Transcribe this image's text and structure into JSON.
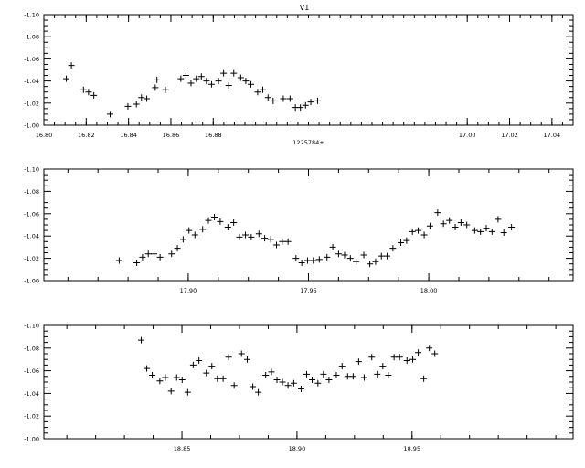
{
  "figure": {
    "title": "V1"
  },
  "chart_data": [
    {
      "type": "scatter",
      "xlabel": "1225784+",
      "ylabel": "",
      "xlim": [
        16.8,
        17.05
      ],
      "ylim": [
        -1.0,
        -1.1
      ],
      "y_axis": "inverted",
      "grid": false,
      "legend": "none",
      "x_ticks": [
        16.8,
        16.82,
        16.84,
        16.86,
        16.88,
        17.0,
        17.02,
        17.04
      ],
      "x_tick_labels": [
        "16.80",
        "16.82",
        "16.84",
        "16.86",
        "16.88",
        "17.00",
        "17.02",
        "17.04"
      ],
      "y_ticks": [
        -1.0,
        -1.02,
        -1.04,
        -1.06,
        -1.08,
        -1.1
      ],
      "y_tick_labels": [
        "-1.00",
        "-1.02",
        "-1.04",
        "-1.06",
        "-1.08",
        "-1.10"
      ],
      "x": [
        16.8106,
        16.813,
        16.8187,
        16.8211,
        16.8236,
        16.8313,
        16.8397,
        16.8437,
        16.8461,
        16.8486,
        16.8526,
        16.8534,
        16.8574,
        16.8647,
        16.8671,
        16.8695,
        16.872,
        16.8744,
        16.8768,
        16.8792,
        16.8825,
        16.8849,
        16.8873,
        16.8897,
        16.893,
        16.8954,
        16.8978,
        16.901,
        16.9034,
        16.9059,
        16.9083,
        16.9131,
        16.9163,
        16.9188,
        16.9212,
        16.9236,
        16.9261,
        16.9293
      ],
      "y": [
        -1.042,
        -1.054,
        -1.032,
        -1.03,
        -1.027,
        -1.01,
        -1.017,
        -1.019,
        -1.025,
        -1.024,
        -1.034,
        -1.041,
        -1.032,
        -1.042,
        -1.045,
        -1.038,
        -1.042,
        -1.044,
        -1.04,
        -1.037,
        -1.04,
        -1.047,
        -1.036,
        -1.047,
        -1.043,
        -1.04,
        -1.037,
        -1.03,
        -1.032,
        -1.025,
        -1.022,
        -1.024,
        -1.024,
        -1.016,
        -1.016,
        -1.018,
        -1.021,
        -1.022
      ]
    },
    {
      "type": "scatter",
      "xlabel": "",
      "ylabel": "",
      "xlim": [
        17.84,
        18.06
      ],
      "ylim": [
        -1.0,
        -1.1
      ],
      "y_axis": "inverted",
      "grid": false,
      "legend": "none",
      "x_ticks": [
        17.9,
        17.95,
        18.0
      ],
      "x_tick_labels": [
        "17.90",
        "17.95",
        "18.00"
      ],
      "y_ticks": [
        -1.0,
        -1.02,
        -1.04,
        -1.06,
        -1.08,
        -1.1
      ],
      "y_tick_labels": [
        "-1.00",
        "-1.02",
        "-1.04",
        "-1.06",
        "-1.08",
        "-1.10"
      ],
      "x": [
        17.8713,
        17.8786,
        17.881,
        17.8834,
        17.8858,
        17.8883,
        17.8931,
        17.8955,
        17.8979,
        17.9003,
        17.9028,
        17.906,
        17.9084,
        17.9109,
        17.9133,
        17.9165,
        17.9189,
        17.9213,
        17.9238,
        17.9262,
        17.9294,
        17.9318,
        17.9343,
        17.9367,
        17.9391,
        17.9415,
        17.9448,
        17.9472,
        17.9496,
        17.952,
        17.9545,
        17.9577,
        17.9601,
        17.9625,
        17.965,
        17.9674,
        17.9698,
        17.973,
        17.9755,
        17.9779,
        17.9803,
        17.9827,
        17.9851,
        17.9884,
        17.9908,
        17.9932,
        17.9956,
        17.9981,
        18.0005,
        18.0037,
        18.0061,
        18.0086,
        18.011,
        18.0134,
        18.0158,
        18.0191,
        18.0215,
        18.0239,
        18.0263,
        18.0288,
        18.0312,
        18.0344
      ],
      "y": [
        -1.018,
        -1.016,
        -1.021,
        -1.024,
        -1.024,
        -1.021,
        -1.024,
        -1.029,
        -1.037,
        -1.045,
        -1.041,
        -1.046,
        -1.054,
        -1.057,
        -1.053,
        -1.048,
        -1.052,
        -1.039,
        -1.041,
        -1.039,
        -1.042,
        -1.038,
        -1.037,
        -1.032,
        -1.035,
        -1.035,
        -1.02,
        -1.016,
        -1.018,
        -1.018,
        -1.019,
        -1.021,
        -1.03,
        -1.024,
        -1.023,
        -1.02,
        -1.017,
        -1.023,
        -1.015,
        -1.017,
        -1.022,
        -1.022,
        -1.029,
        -1.034,
        -1.036,
        -1.044,
        -1.045,
        -1.041,
        -1.049,
        -1.061,
        -1.051,
        -1.054,
        -1.048,
        -1.052,
        -1.05,
        -1.045,
        -1.044,
        -1.047,
        -1.044,
        -1.055,
        -1.043,
        -1.048
      ]
    },
    {
      "type": "scatter",
      "xlabel": "",
      "ylabel": "",
      "xlim": [
        18.79,
        19.02
      ],
      "ylim": [
        -1.0,
        -1.1
      ],
      "y_axis": "inverted",
      "grid": false,
      "legend": "none",
      "x_ticks": [
        18.85,
        18.9,
        18.95
      ],
      "x_tick_labels": [
        "18.85",
        "18.90",
        "18.95"
      ],
      "y_ticks": [
        -1.0,
        -1.02,
        -1.04,
        -1.06,
        -1.08,
        -1.1
      ],
      "y_tick_labels": [
        "-1.00",
        "-1.02",
        "-1.04",
        "-1.06",
        "-1.08",
        "-1.10"
      ],
      "x": [
        18.8323,
        18.8347,
        18.8371,
        18.8404,
        18.8428,
        18.8453,
        18.8477,
        18.8501,
        18.8525,
        18.8549,
        18.8574,
        18.8606,
        18.863,
        18.8654,
        18.8679,
        18.8703,
        18.8727,
        18.8759,
        18.8784,
        18.8808,
        18.8832,
        18.8864,
        18.8889,
        18.8913,
        18.8937,
        18.8961,
        18.8986,
        18.9018,
        18.9042,
        18.9066,
        18.9091,
        18.9115,
        18.9139,
        18.9171,
        18.9196,
        18.922,
        18.9244,
        18.9268,
        18.9292,
        18.9325,
        18.9349,
        18.9373,
        18.9397,
        18.9422,
        18.9446,
        18.9478,
        18.9503,
        18.9527,
        18.9551,
        18.9575,
        18.9599
      ],
      "y": [
        -1.087,
        -1.062,
        -1.056,
        -1.051,
        -1.054,
        -1.042,
        -1.054,
        -1.052,
        -1.041,
        -1.065,
        -1.069,
        -1.058,
        -1.064,
        -1.053,
        -1.053,
        -1.072,
        -1.047,
        -1.075,
        -1.07,
        -1.046,
        -1.041,
        -1.056,
        -1.059,
        -1.052,
        -1.05,
        -1.047,
        -1.049,
        -1.044,
        -1.057,
        -1.052,
        -1.049,
        -1.057,
        -1.052,
        -1.056,
        -1.064,
        -1.055,
        -1.055,
        -1.068,
        -1.054,
        -1.072,
        -1.057,
        -1.064,
        -1.056,
        -1.072,
        -1.072,
        -1.069,
        -1.07,
        -1.076,
        -1.053,
        -1.08,
        -1.075
      ]
    }
  ]
}
